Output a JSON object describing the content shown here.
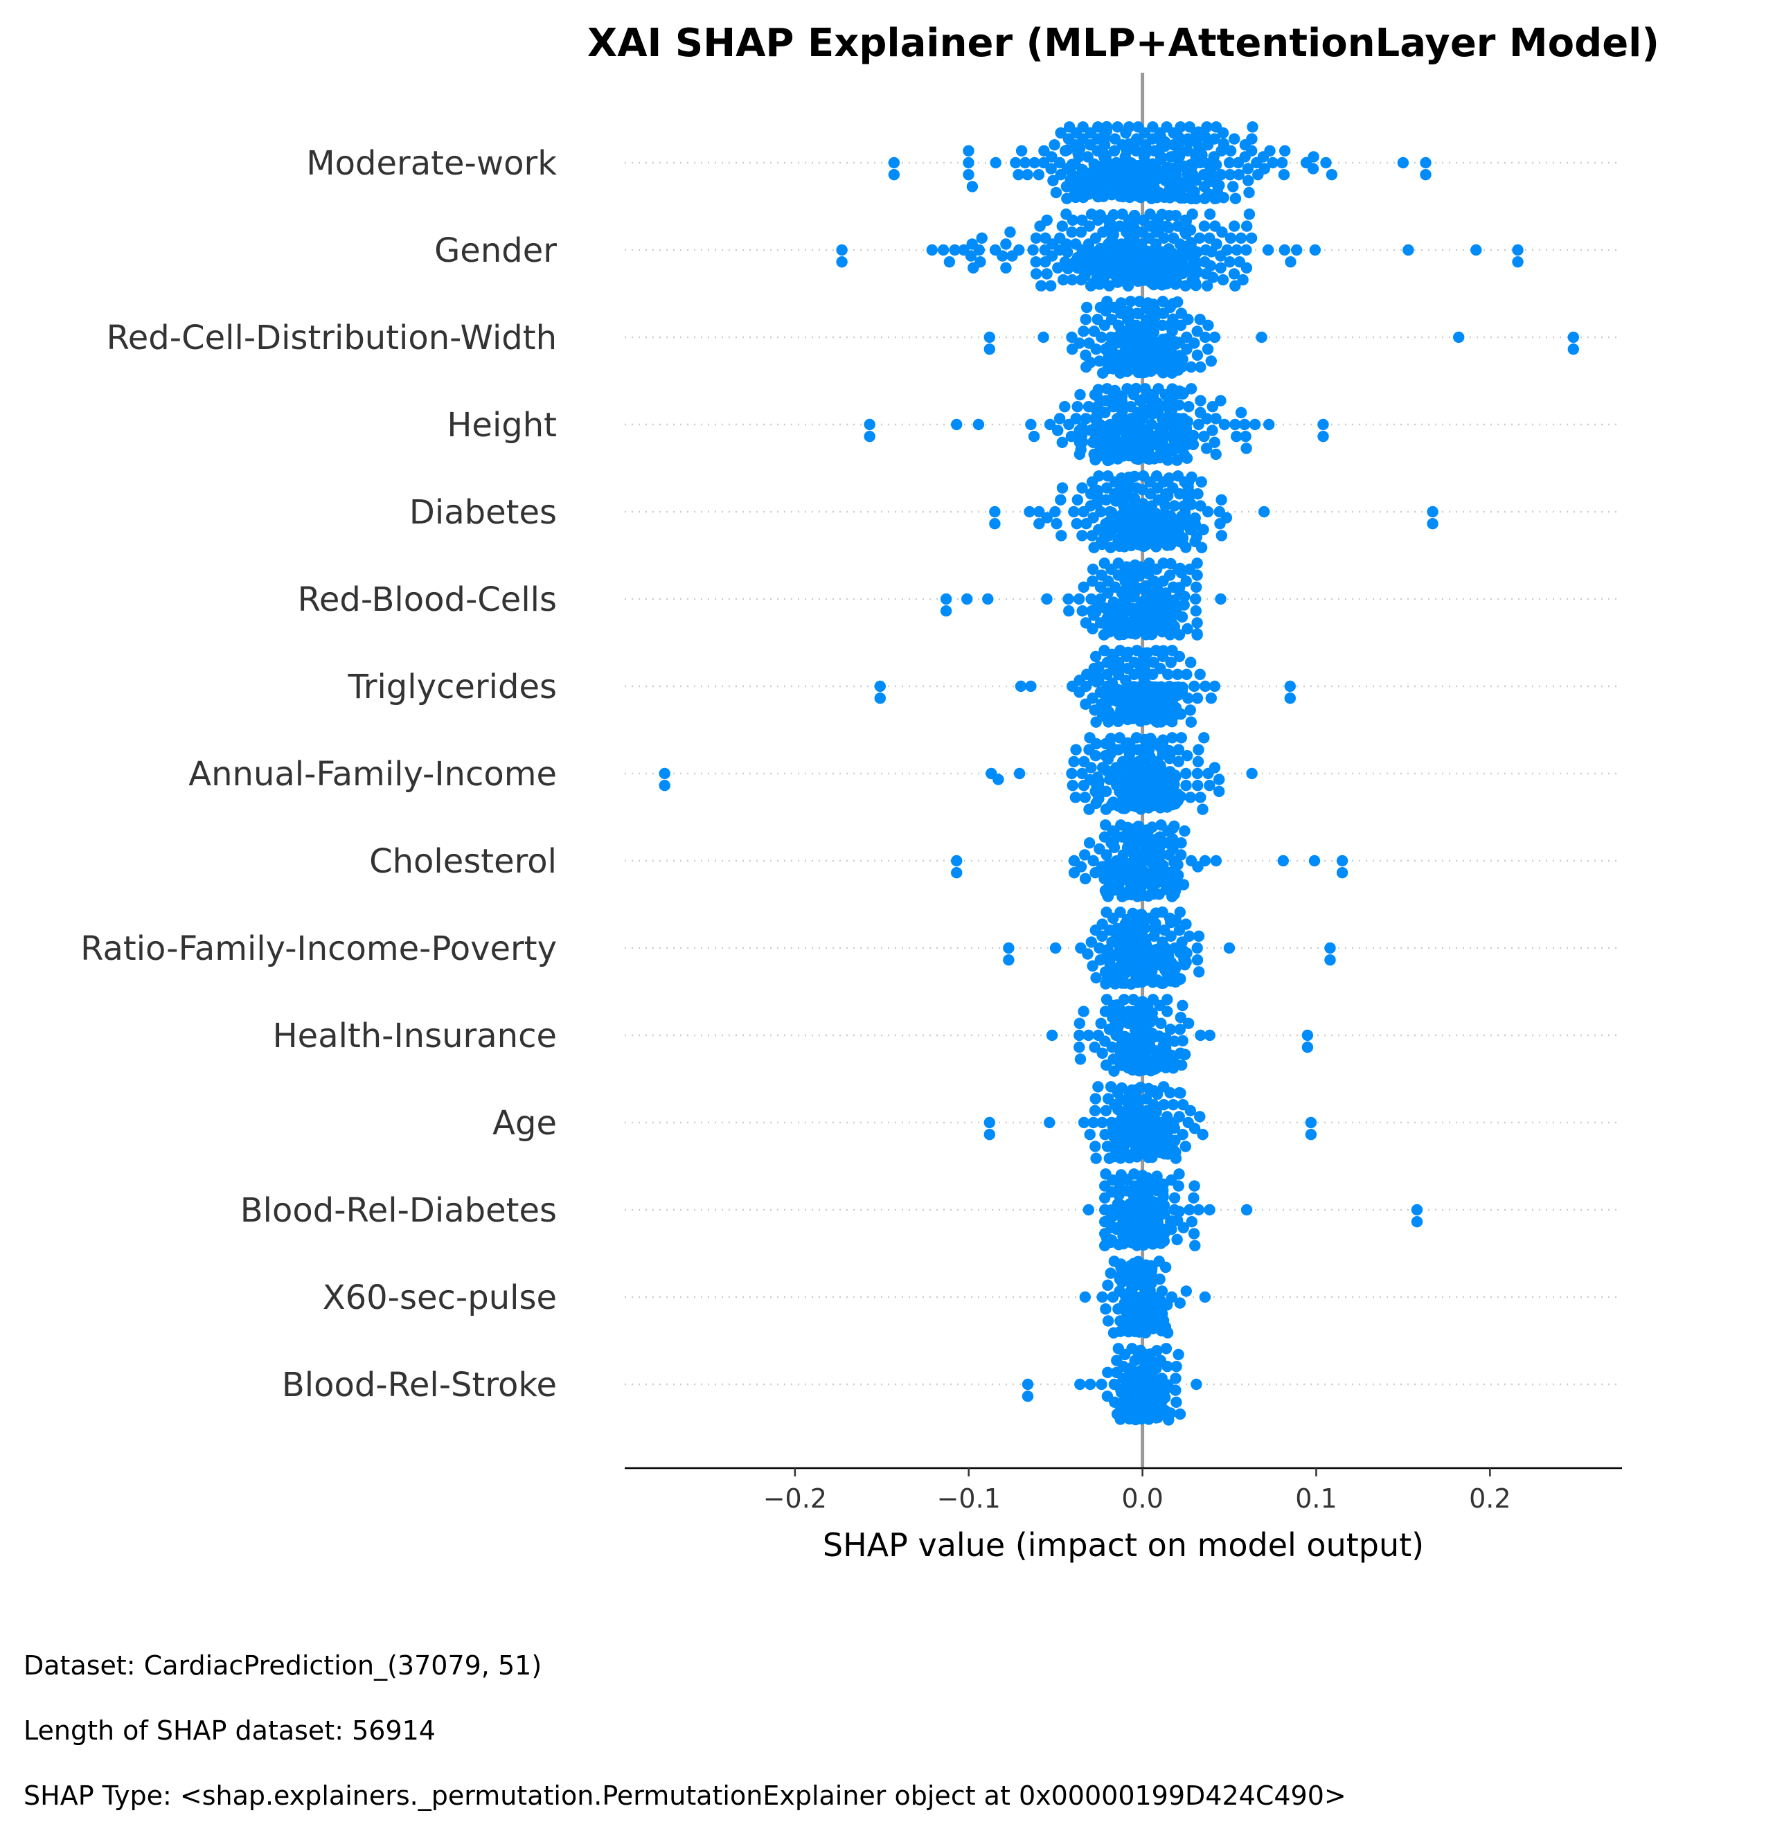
{
  "chart_data": {
    "type": "scatter",
    "subtype": "shap-beeswarm",
    "title": "XAI SHAP Explainer (MLP+AttentionLayer Model)",
    "xlabel": "SHAP value (impact on model output)",
    "xlim": [
      -0.298,
      0.276
    ],
    "xticks": [
      -0.2,
      -0.1,
      0.0,
      0.1,
      0.2
    ],
    "xtick_labels": [
      "−0.2",
      "−0.1",
      "0.0",
      "0.1",
      "0.2"
    ],
    "zero_line": true,
    "point_color": "#008bfb",
    "zero_line_color": "#999999",
    "features": [
      {
        "name": "Moderate-work",
        "min": -0.143,
        "max": 0.163,
        "spread": 0.06,
        "outliers": [
          -0.143,
          0.15,
          0.163
        ]
      },
      {
        "name": "Gender",
        "min": -0.173,
        "max": 0.216,
        "spread": 0.06,
        "outliers": [
          -0.173,
          -0.098,
          0.153,
          0.192,
          0.216
        ]
      },
      {
        "name": "Red-Cell-Distribution-Width",
        "min": -0.088,
        "max": 0.248,
        "spread": 0.03,
        "outliers": [
          -0.088,
          -0.057,
          0.182,
          0.248
        ]
      },
      {
        "name": "Height",
        "min": -0.157,
        "max": 0.104,
        "spread": 0.04,
        "outliers": [
          -0.157,
          -0.107,
          0.104
        ]
      },
      {
        "name": "Diabetes",
        "min": -0.085,
        "max": 0.167,
        "spread": 0.035,
        "outliers": [
          -0.085,
          -0.065,
          0.167
        ]
      },
      {
        "name": "Red-Blood-Cells",
        "min": -0.113,
        "max": 0.045,
        "spread": 0.03,
        "outliers": [
          -0.113,
          -0.101,
          -0.089
        ]
      },
      {
        "name": "Triglycerides",
        "min": -0.151,
        "max": 0.085,
        "spread": 0.03,
        "outliers": [
          -0.151,
          0.085
        ]
      },
      {
        "name": "Annual-Family-Income",
        "min": -0.275,
        "max": 0.063,
        "spread": 0.03,
        "outliers": [
          -0.275,
          -0.087,
          -0.083
        ]
      },
      {
        "name": "Cholesterol",
        "min": -0.107,
        "max": 0.115,
        "spread": 0.025,
        "outliers": [
          -0.107,
          0.081,
          0.099,
          0.115
        ]
      },
      {
        "name": "Ratio-Family-Income-Poverty",
        "min": -0.077,
        "max": 0.108,
        "spread": 0.025,
        "outliers": [
          -0.077,
          0.108
        ]
      },
      {
        "name": "Health-Insurance",
        "min": -0.052,
        "max": 0.095,
        "spread": 0.022,
        "outliers": [
          0.095
        ]
      },
      {
        "name": "Age",
        "min": -0.088,
        "max": 0.097,
        "spread": 0.025,
        "outliers": [
          -0.088,
          0.097
        ]
      },
      {
        "name": "Blood-Rel-Diabetes",
        "min": -0.031,
        "max": 0.158,
        "spread": 0.02,
        "outliers": [
          0.06,
          0.158
        ]
      },
      {
        "name": "X60-sec-pulse",
        "min": -0.033,
        "max": 0.036,
        "spread": 0.015,
        "outliers": []
      },
      {
        "name": "Blood-Rel-Stroke",
        "min": -0.066,
        "max": 0.031,
        "spread": 0.015,
        "outliers": [
          -0.066,
          -0.036
        ]
      }
    ]
  },
  "footer": {
    "dataset": "Dataset: CardiacPrediction_(37079, 51)",
    "length": "Length of SHAP dataset: 56914",
    "shap_type": "SHAP Type: <shap.explainers._permutation.PermutationExplainer object at 0x00000199D424C490>"
  }
}
